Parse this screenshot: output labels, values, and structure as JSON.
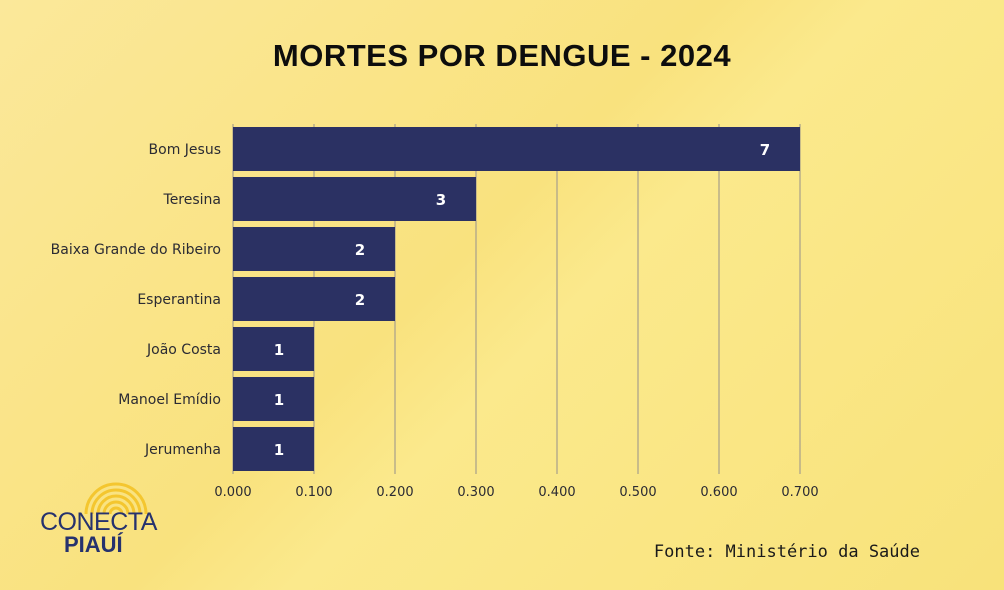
{
  "title": "MORTES POR DENGUE - 2024",
  "source": "Fonte: Ministério da Saúde",
  "logo": {
    "line1": "CONECTA",
    "line2": "PIAUÍ"
  },
  "colors": {
    "bar": "#2b3163",
    "grid": "#b7ad8a",
    "background": "#f9e47f",
    "logo": "#26326e",
    "logo_rays": "#f4c62f"
  },
  "chart_data": {
    "type": "bar",
    "orientation": "horizontal",
    "categories": [
      "Bom Jesus",
      "Teresina",
      "Baixa Grande do Ribeiro",
      "Esperantina",
      "João Costa",
      "Manoel Emídio",
      "Jerumenha"
    ],
    "values": [
      0.7,
      0.3,
      0.2,
      0.2,
      0.1,
      0.1,
      0.1
    ],
    "data_labels": [
      "7",
      "3",
      "2",
      "2",
      "1",
      "1",
      "1"
    ],
    "xlim": [
      0,
      0.7
    ],
    "xticks": [
      "0.000",
      "0.100",
      "0.200",
      "0.300",
      "0.400",
      "0.500",
      "0.600",
      "0.700"
    ],
    "grid": "vertical",
    "legend": "none",
    "title": "MORTES POR DENGUE - 2024",
    "xlabel": "",
    "ylabel": ""
  }
}
